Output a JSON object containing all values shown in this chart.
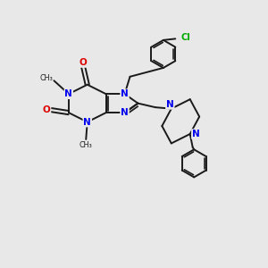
{
  "bg_color": "#e8e8e8",
  "bond_color": "#1a1a1a",
  "N_color": "#0000ee",
  "O_color": "#dd0000",
  "Cl_color": "#00aa00",
  "line_width": 1.4,
  "figsize": [
    3.0,
    3.0
  ],
  "dpi": 100,
  "xlim": [
    0,
    10
  ],
  "ylim": [
    0,
    10
  ]
}
